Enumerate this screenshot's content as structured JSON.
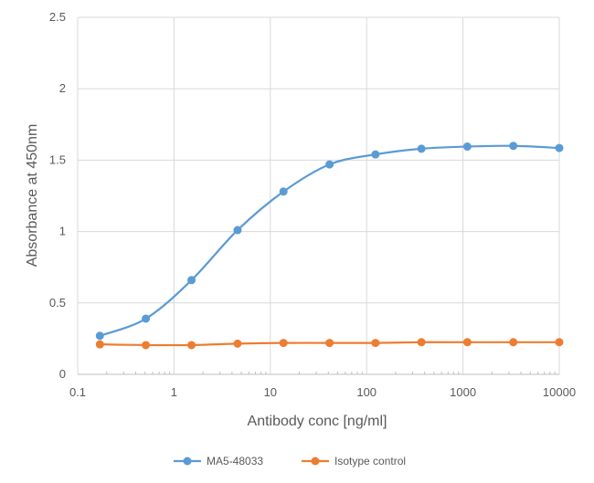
{
  "chart_data": {
    "type": "line",
    "title": "",
    "xlabel": "Antibody conc [ng/ml]",
    "ylabel": "Absorbance at 450nm",
    "xscale": "log",
    "xlim": [
      0.1,
      10000
    ],
    "ylim": [
      0,
      2.5
    ],
    "x_tick_labels": [
      "0.1",
      "1",
      "10",
      "100",
      "1000",
      "10000"
    ],
    "y_tick_labels": [
      "0",
      "0.5",
      "1",
      "1.5",
      "2",
      "2.5"
    ],
    "grid": true,
    "legend_position": "bottom",
    "x": [
      0.17,
      0.51,
      1.52,
      4.57,
      13.7,
      41.2,
      123.5,
      370.4,
      1111,
      3333,
      10000
    ],
    "series": [
      {
        "name": "MA5-48033",
        "color": "#5B9BD5",
        "values": [
          0.27,
          0.39,
          0.66,
          1.01,
          1.28,
          1.47,
          1.54,
          1.58,
          1.595,
          1.6,
          1.585
        ]
      },
      {
        "name": "Isotype control",
        "color": "#ED7D31",
        "values": [
          0.21,
          0.205,
          0.205,
          0.215,
          0.22,
          0.22,
          0.22,
          0.225,
          0.225,
          0.225,
          0.225
        ]
      }
    ]
  }
}
